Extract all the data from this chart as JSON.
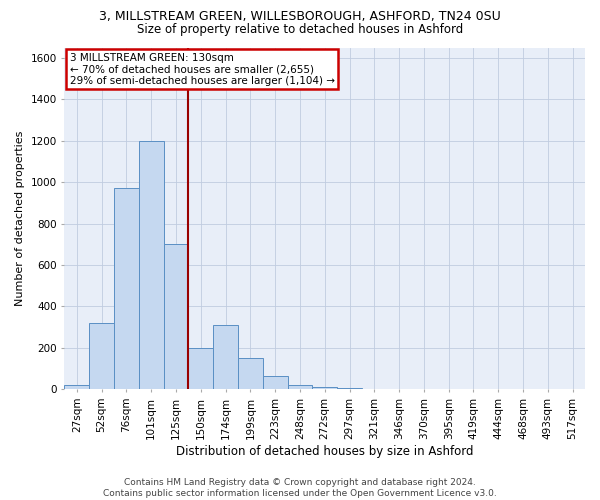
{
  "title": "3, MILLSTREAM GREEN, WILLESBOROUGH, ASHFORD, TN24 0SU",
  "subtitle": "Size of property relative to detached houses in Ashford",
  "xlabel": "Distribution of detached houses by size in Ashford",
  "ylabel": "Number of detached properties",
  "footer_line1": "Contains HM Land Registry data © Crown copyright and database right 2024.",
  "footer_line2": "Contains public sector information licensed under the Open Government Licence v3.0.",
  "annotation_line1": "3 MILLSTREAM GREEN: 130sqm",
  "annotation_line2": "← 70% of detached houses are smaller (2,655)",
  "annotation_line3": "29% of semi-detached houses are larger (1,104) →",
  "bin_labels": [
    "27sqm",
    "52sqm",
    "76sqm",
    "101sqm",
    "125sqm",
    "150sqm",
    "174sqm",
    "199sqm",
    "223sqm",
    "248sqm",
    "272sqm",
    "297sqm",
    "321sqm",
    "346sqm",
    "370sqm",
    "395sqm",
    "419sqm",
    "444sqm",
    "468sqm",
    "493sqm",
    "517sqm"
  ],
  "bar_values": [
    20,
    320,
    970,
    1200,
    700,
    200,
    310,
    150,
    65,
    20,
    10,
    5,
    2,
    1,
    0,
    3,
    0,
    0,
    0,
    0,
    3
  ],
  "bar_color": "#c5d8f0",
  "bar_edge_color": "#5a8fc4",
  "vline_color": "#990000",
  "vline_x": 4.5,
  "ylim": [
    0,
    1650
  ],
  "yticks": [
    0,
    200,
    400,
    600,
    800,
    1000,
    1200,
    1400,
    1600
  ],
  "background_color": "#e8eef8",
  "grid_color": "#c0cce0",
  "annotation_box_color": "#cc0000",
  "title_fontsize": 9,
  "subtitle_fontsize": 8.5,
  "xlabel_fontsize": 8.5,
  "ylabel_fontsize": 8,
  "tick_fontsize": 7.5,
  "annotation_fontsize": 7.5,
  "footer_fontsize": 6.5
}
